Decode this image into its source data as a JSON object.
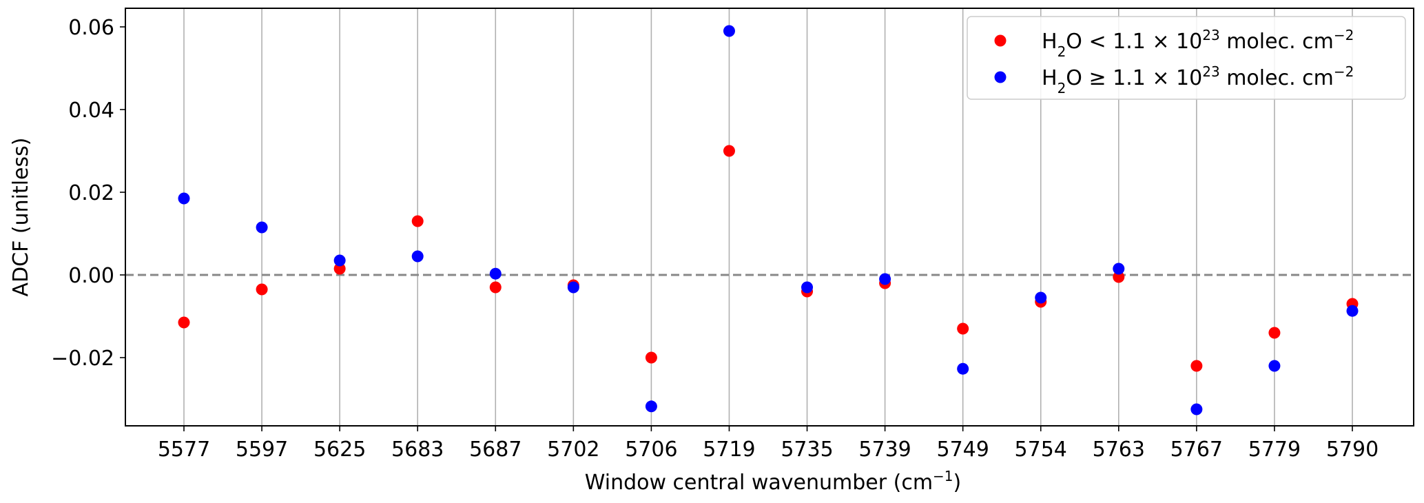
{
  "chart_data": {
    "type": "scatter",
    "title": "",
    "xlabel": "Window central wavenumber (cm",
    "xlabel_unit_exponent": "−1",
    "xlabel_tail": ")",
    "ylabel": "ADCF (unitless)",
    "categories": [
      "5577",
      "5597",
      "5625",
      "5683",
      "5687",
      "5702",
      "5706",
      "5719",
      "5735",
      "5739",
      "5749",
      "5754",
      "5763",
      "5767",
      "5779",
      "5790"
    ],
    "ylim": [
      -0.0365,
      0.0645
    ],
    "yticks": [
      -0.02,
      0.0,
      0.02,
      0.04,
      0.06
    ],
    "ytick_labels": [
      "−0.02",
      "0.00",
      "0.02",
      "0.04",
      "0.06"
    ],
    "grid": "vertical lines at each category",
    "reference_line": {
      "y": 0.0,
      "style": "dashed",
      "color": "#888888"
    },
    "legend_position": "top-right",
    "series": [
      {
        "name": "H₂O < 1.1 × 10²³ molec. cm⁻²",
        "legend_parts": {
          "base": "H",
          "sub": "2",
          "mid": "O  < 1.1 × 10",
          "sup": "23",
          "tail": " molec. cm",
          "tail_sup": "−2"
        },
        "color": "#ff0000",
        "values": [
          -0.0115,
          -0.0035,
          0.0015,
          0.013,
          -0.003,
          -0.0025,
          -0.02,
          0.03,
          -0.004,
          -0.002,
          -0.013,
          -0.0065,
          -0.0005,
          -0.022,
          -0.014,
          -0.007
        ]
      },
      {
        "name": "H₂O ≥ 1.1 × 10²³ molec. cm⁻²",
        "legend_parts": {
          "base": "H",
          "sub": "2",
          "mid": "O  ≥ 1.1 × 10",
          "sup": "23",
          "tail": " molec. cm",
          "tail_sup": "−2"
        },
        "color": "#0000ff",
        "values": [
          0.0185,
          0.0115,
          0.0035,
          0.0045,
          0.0003,
          -0.003,
          -0.0318,
          0.059,
          -0.003,
          -0.001,
          -0.0227,
          -0.0055,
          0.0015,
          -0.0325,
          -0.022,
          -0.0087
        ]
      }
    ]
  }
}
